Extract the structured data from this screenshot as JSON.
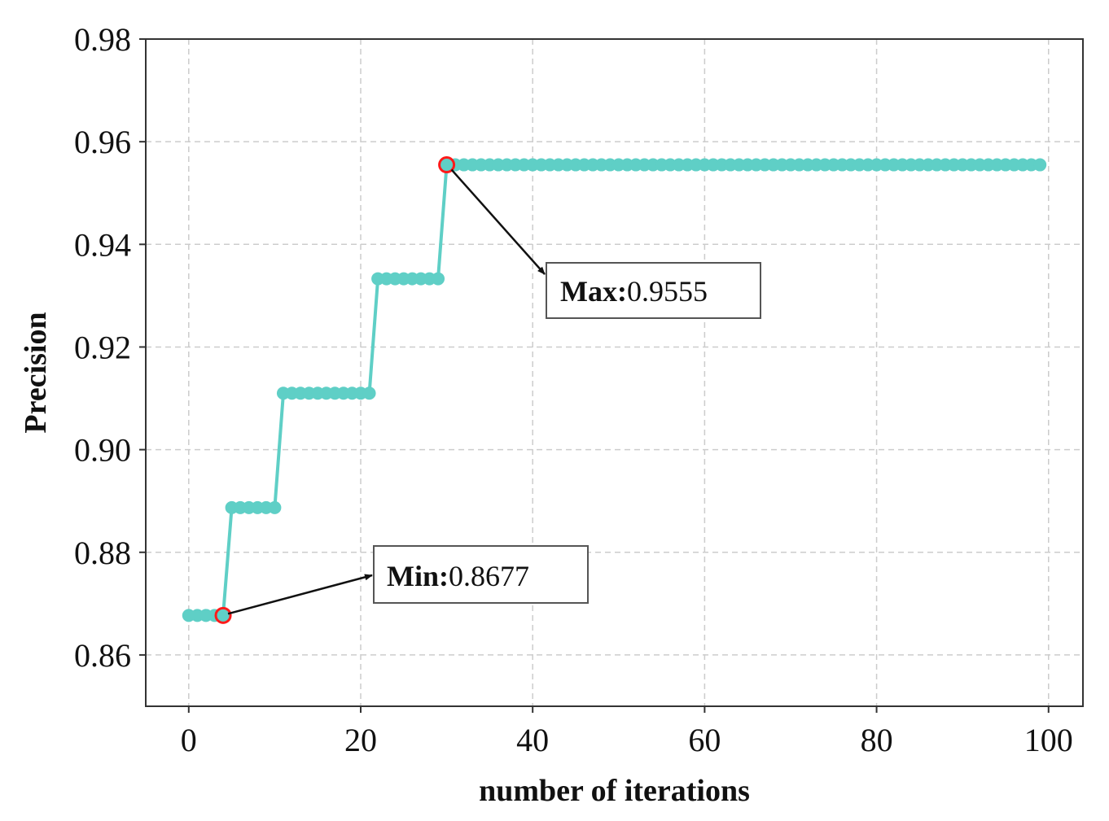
{
  "chart_data": {
    "type": "line",
    "xlabel": "number of iterations",
    "ylabel": "Precision",
    "xlim": [
      -5,
      104
    ],
    "ylim": [
      0.85,
      0.98
    ],
    "xticks": [
      0,
      20,
      40,
      60,
      80,
      100
    ],
    "yticks": [
      0.86,
      0.88,
      0.9,
      0.92,
      0.94,
      0.96,
      0.98
    ],
    "xtick_labels": [
      "0",
      "20",
      "40",
      "60",
      "80",
      "100"
    ],
    "ytick_labels": [
      "0.86",
      "0.88",
      "0.90",
      "0.92",
      "0.94",
      "0.96",
      "0.98"
    ],
    "grid": true,
    "series": [
      {
        "color": "#5fcfc6",
        "steps": [
          {
            "x_start": 0,
            "x_end": 4,
            "y": 0.8677
          },
          {
            "x_start": 5,
            "x_end": 10,
            "y": 0.8887
          },
          {
            "x_start": 11,
            "x_end": 21,
            "y": 0.911
          },
          {
            "x_start": 22,
            "x_end": 29,
            "y": 0.9333
          },
          {
            "x_start": 30,
            "x_end": 99,
            "y": 0.9555
          }
        ]
      }
    ],
    "annotations": [
      {
        "key": "Min:",
        "value": "0.8677",
        "x": 4,
        "y": 0.8677
      },
      {
        "key": "Max:",
        "value": "0.9555",
        "x": 30,
        "y": 0.9555
      }
    ],
    "highlight_color": "#ff1a1a"
  }
}
